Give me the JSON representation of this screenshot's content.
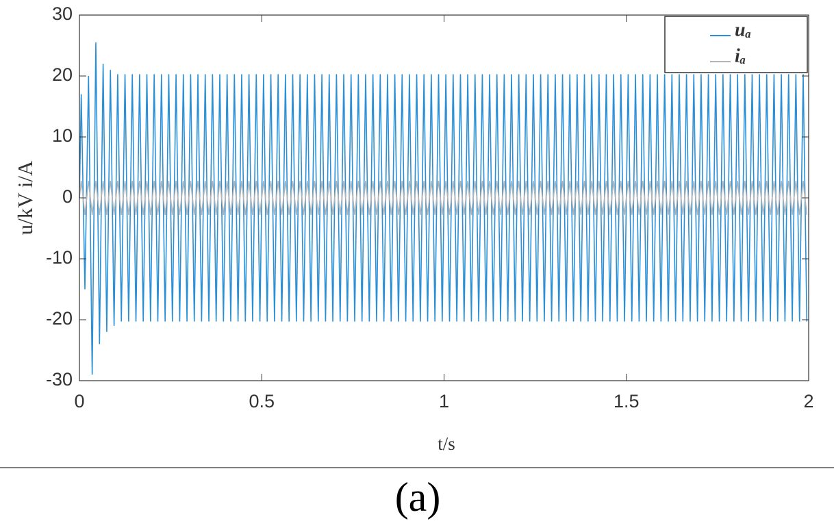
{
  "chart_data": {
    "type": "line",
    "xlabel": "t/s",
    "ylabel": "u/kV  i/A",
    "caption": "(a)",
    "xlim": [
      0,
      2
    ],
    "xticks": [
      0,
      0.5,
      1,
      1.5,
      2
    ],
    "ylim": [
      -30,
      30
    ],
    "yticks": [
      -30,
      -20,
      -10,
      0,
      10,
      20,
      30
    ],
    "grid": false,
    "legend": "upper right",
    "x": [
      0,
      0.005,
      0.015,
      0.025,
      0.035,
      0.045,
      0.055,
      0.065,
      0.075,
      0.085,
      0.095,
      0.105,
      0.115,
      0.125,
      0.135,
      0.145,
      0.155,
      0.165,
      0.175,
      0.185,
      0.195,
      0.205,
      0.215,
      0.225,
      0.235,
      0.245,
      0.255,
      0.265,
      0.275,
      0.285,
      0.295,
      0.305,
      0.315,
      0.325,
      0.335,
      0.345,
      0.355,
      0.365,
      0.375,
      0.385,
      0.395,
      0.405,
      0.415,
      0.425,
      0.435,
      0.445,
      0.455,
      0.465,
      0.475,
      0.485,
      0.495,
      0.505,
      0.515,
      0.525,
      0.535,
      0.545,
      0.555,
      0.565,
      0.575,
      0.585,
      0.595,
      0.605,
      0.615,
      0.625,
      0.635,
      0.645,
      0.655,
      0.665,
      0.675,
      0.685,
      0.695,
      0.705,
      0.715,
      0.725,
      0.735,
      0.745,
      0.755,
      0.765,
      0.775,
      0.785,
      0.795,
      0.805,
      0.815,
      0.825,
      0.835,
      0.845,
      0.855,
      0.865,
      0.875,
      0.885,
      0.895,
      0.905,
      0.915,
      0.925,
      0.935,
      0.945,
      0.955,
      0.965,
      0.975,
      0.985,
      0.995,
      1.005,
      1.015,
      1.025,
      1.035,
      1.045,
      1.055,
      1.065,
      1.075,
      1.085,
      1.095,
      1.105,
      1.115,
      1.125,
      1.135,
      1.145,
      1.155,
      1.165,
      1.175,
      1.185,
      1.195,
      1.205,
      1.215,
      1.225,
      1.235,
      1.245,
      1.255,
      1.265,
      1.275,
      1.285,
      1.295,
      1.305,
      1.315,
      1.325,
      1.335,
      1.345,
      1.355,
      1.365,
      1.375,
      1.385,
      1.395,
      1.405,
      1.415,
      1.425,
      1.435,
      1.445,
      1.455,
      1.465,
      1.475,
      1.485,
      1.495,
      1.505,
      1.515,
      1.525,
      1.535,
      1.545,
      1.555,
      1.565,
      1.575,
      1.585,
      1.595,
      1.605,
      1.615,
      1.625,
      1.635,
      1.645,
      1.655,
      1.665,
      1.675,
      1.685,
      1.695,
      1.705,
      1.715,
      1.725,
      1.735,
      1.745,
      1.755,
      1.765,
      1.775,
      1.785,
      1.795,
      1.805,
      1.815,
      1.825,
      1.835,
      1.845,
      1.855,
      1.865,
      1.875,
      1.885,
      1.895,
      1.905,
      1.915,
      1.925,
      1.935,
      1.945,
      1.955,
      1.965,
      1.975,
      1.985,
      1.995
    ],
    "series": [
      {
        "name": "uₐ",
        "color": "#2b8fd6",
        "values": [
          0,
          17,
          -15,
          20,
          -29,
          25.5,
          -24,
          22,
          -22,
          21,
          -21,
          20.3,
          -20.3,
          20.3,
          -20.3,
          20.3,
          -20.3,
          20.3,
          -20.3,
          20.3,
          -20.3,
          20.3,
          -20.3,
          20.3,
          -20.3,
          20.3,
          -20.3,
          20.3,
          -20.3,
          20.3,
          -20.3,
          20.3,
          -20.3,
          20.3,
          -20.3,
          20.3,
          -20.3,
          20.3,
          -20.3,
          20.3,
          -20.3,
          20.3,
          -20.3,
          20.3,
          -20.3,
          20.3,
          -20.3,
          20.3,
          -20.3,
          20.3,
          -20.3,
          20.3,
          -20.3,
          20.3,
          -20.3,
          20.3,
          -20.3,
          20.3,
          -20.3,
          20.3,
          -20.3,
          20.3,
          -20.3,
          20.3,
          -20.3,
          20.3,
          -20.3,
          20.3,
          -20.3,
          20.3,
          -20.3,
          20.3,
          -20.3,
          20.3,
          -20.3,
          20.3,
          -20.3,
          20.3,
          -20.3,
          20.3,
          -20.3,
          20.3,
          -20.3,
          20.3,
          -20.3,
          20.3,
          -20.3,
          20.3,
          -20.3,
          20.3,
          -20.3,
          20.3,
          -20.3,
          20.3,
          -20.3,
          20.3,
          -20.3,
          20.3,
          -20.3,
          20.3,
          -20.3,
          20.3,
          -20.3,
          20.3,
          -20.3,
          20.3,
          -20.3,
          20.3,
          -20.3,
          20.3,
          -20.3,
          20.3,
          -20.3,
          20.3,
          -20.3,
          20.3,
          -20.3,
          20.3,
          -20.3,
          20.3,
          -20.3,
          20.3,
          -20.3,
          20.3,
          -20.3,
          20.3,
          -20.3,
          20.3,
          -20.3,
          20.3,
          -20.3,
          20.3,
          -20.3,
          20.3,
          -20.3,
          20.3,
          -20.3,
          20.3,
          -20.3,
          20.3,
          -20.3,
          20.3,
          -20.3,
          20.3,
          -20.3,
          20.3,
          -20.3,
          20.3,
          -20.3,
          20.3,
          -20.3,
          20.3,
          -20.3,
          20.3,
          -20.3,
          20.3,
          -20.3,
          20.3,
          -20.3,
          20.3,
          -20.3,
          20.3,
          -20.3,
          20.3,
          -20.3,
          20.3,
          -20.3,
          20.3,
          -20.3,
          20.3,
          -20.3,
          20.3,
          -20.3,
          20.3,
          -20.3,
          20.3,
          -20.3,
          20.3,
          -20.3,
          20.3,
          -20.3,
          20.3,
          -20.3,
          20.3,
          -20.3,
          20.3,
          -20.3,
          20.3,
          -20.3,
          20.3,
          -20.3,
          20.3,
          -20.3,
          20.3,
          -20.3,
          20.3,
          -20.3,
          20.3,
          -20.3,
          20.3,
          -20.3
        ]
      },
      {
        "name": "iₐ",
        "color": "#b4b4b4",
        "values": [
          0,
          2.8,
          -2.8,
          2.8,
          -2.8,
          2.8,
          -2.8,
          2.8,
          -2.8,
          2.8,
          -2.8,
          2.8,
          -2.8,
          2.8,
          -2.8,
          2.8,
          -2.8,
          2.8,
          -2.8,
          2.8,
          -2.8,
          2.8,
          -2.8,
          2.8,
          -2.8,
          2.8,
          -2.8,
          2.8,
          -2.8,
          2.8,
          -2.8,
          2.8,
          -2.8,
          2.8,
          -2.8,
          2.8,
          -2.8,
          2.8,
          -2.8,
          2.8,
          -2.8,
          2.8,
          -2.8,
          2.8,
          -2.8,
          2.8,
          -2.8,
          2.8,
          -2.8,
          2.8,
          -2.8,
          2.8,
          -2.8,
          2.8,
          -2.8,
          2.8,
          -2.8,
          2.8,
          -2.8,
          2.8,
          -2.8,
          2.8,
          -2.8,
          2.8,
          -2.8,
          2.8,
          -2.8,
          2.8,
          -2.8,
          2.8,
          -2.8,
          2.8,
          -2.8,
          2.8,
          -2.8,
          2.8,
          -2.8,
          2.8,
          -2.8,
          2.8,
          -2.8,
          2.8,
          -2.8,
          2.8,
          -2.8,
          2.8,
          -2.8,
          2.8,
          -2.8,
          2.8,
          -2.8,
          2.8,
          -2.8,
          2.8,
          -2.8,
          2.8,
          -2.8,
          2.8,
          -2.8,
          2.8,
          -2.8,
          2.8,
          -2.8,
          2.8,
          -2.8,
          2.8,
          -2.8,
          2.8,
          -2.8,
          2.8,
          -2.8,
          2.8,
          -2.8,
          2.8,
          -2.8,
          2.8,
          -2.8,
          2.8,
          -2.8,
          2.8,
          -2.8,
          2.8,
          -2.8,
          2.8,
          -2.8,
          2.8,
          -2.8,
          2.8,
          -2.8,
          2.8,
          -2.8,
          2.8,
          -2.8,
          2.8,
          -2.8,
          2.8,
          -2.8,
          2.8,
          -2.8,
          2.8,
          -2.8,
          2.8,
          -2.8,
          2.8,
          -2.8,
          2.8,
          -2.8,
          2.8,
          -2.8,
          2.8,
          -2.8,
          2.8,
          -2.8,
          2.8,
          -2.8,
          2.8,
          -2.8,
          2.8,
          -2.8,
          2.8,
          -2.8,
          2.8,
          -2.8,
          2.8,
          -2.8,
          2.8,
          -2.8,
          2.8,
          -2.8,
          2.8,
          -2.8,
          2.8,
          -2.8,
          2.8,
          -2.8,
          2.8,
          -2.8,
          2.8,
          -2.8,
          2.8,
          -2.8,
          2.8,
          -2.8,
          2.8,
          -2.8,
          2.8,
          -2.8,
          2.8,
          -2.8,
          2.8,
          -2.8,
          2.8,
          -2.8,
          2.8,
          -2.8,
          2.8,
          -2.8,
          2.8,
          -2.8,
          2.8,
          -2.8
        ]
      }
    ]
  }
}
